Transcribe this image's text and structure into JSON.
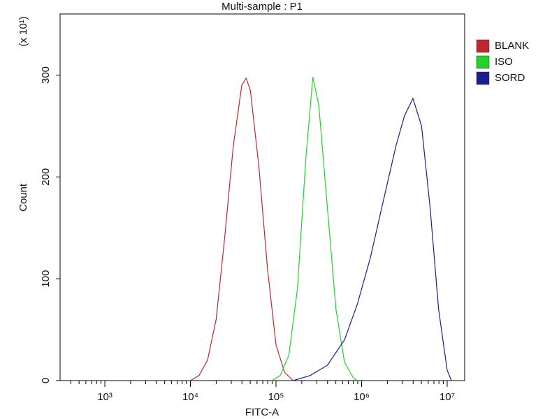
{
  "chart_data": {
    "type": "line",
    "title": "Multi-sample : P1",
    "x_label": "FITC-A",
    "y_label": "Count",
    "y_scale_label": "(x 10¹)",
    "x_log": true,
    "xlim": [
      300,
      16000000
    ],
    "xticks": [
      {
        "value": 1000,
        "label": "10³"
      },
      {
        "value": 10000,
        "label": "10⁴"
      },
      {
        "value": 100000,
        "label": "10⁵"
      },
      {
        "value": 1000000,
        "label": "10⁶"
      },
      {
        "value": 10000000,
        "label": "10⁷"
      }
    ],
    "xminorticks": [
      400,
      500,
      600,
      700,
      800,
      900,
      2000,
      3000,
      4000,
      5000,
      6000,
      7000,
      8000,
      9000,
      20000,
      30000,
      40000,
      50000,
      60000,
      70000,
      80000,
      90000,
      200000,
      300000,
      400000,
      500000,
      600000,
      700000,
      800000,
      900000,
      2000000,
      3000000,
      4000000,
      5000000,
      6000000,
      7000000,
      8000000,
      9000000
    ],
    "ylim": [
      0,
      360
    ],
    "yticks": [
      0,
      100,
      200,
      300
    ],
    "legend": "right",
    "series": [
      {
        "name": "BLANK",
        "color": "#c0282d",
        "x": [
          10000,
          12589,
          15849,
          19953,
          25119,
          31623,
          39811,
          44668,
          50119,
          63096,
          79433,
          100000,
          125893,
          158489
        ],
        "values": [
          0,
          5,
          20,
          60,
          140,
          230,
          290,
          297,
          285,
          210,
          110,
          35,
          8,
          0
        ]
      },
      {
        "name": "ISO",
        "color": "#22d22a",
        "x": [
          89125,
          112202,
          141254,
          177828,
          223872,
          269153,
          316228,
          398107,
          501187,
          630957,
          794328,
          891251
        ],
        "values": [
          0,
          5,
          25,
          90,
          220,
          298,
          270,
          170,
          70,
          18,
          3,
          0
        ]
      },
      {
        "name": "SORD",
        "color": "#1a1f8c",
        "x": [
          158489,
          251189,
          398107,
          630957,
          891251,
          1258925,
          1778279,
          2511886,
          3162278,
          3981072,
          5011872,
          6309573,
          7943282,
          10000000,
          11220185
        ],
        "values": [
          0,
          5,
          15,
          40,
          75,
          120,
          175,
          230,
          260,
          277,
          250,
          170,
          70,
          10,
          0
        ]
      }
    ]
  }
}
